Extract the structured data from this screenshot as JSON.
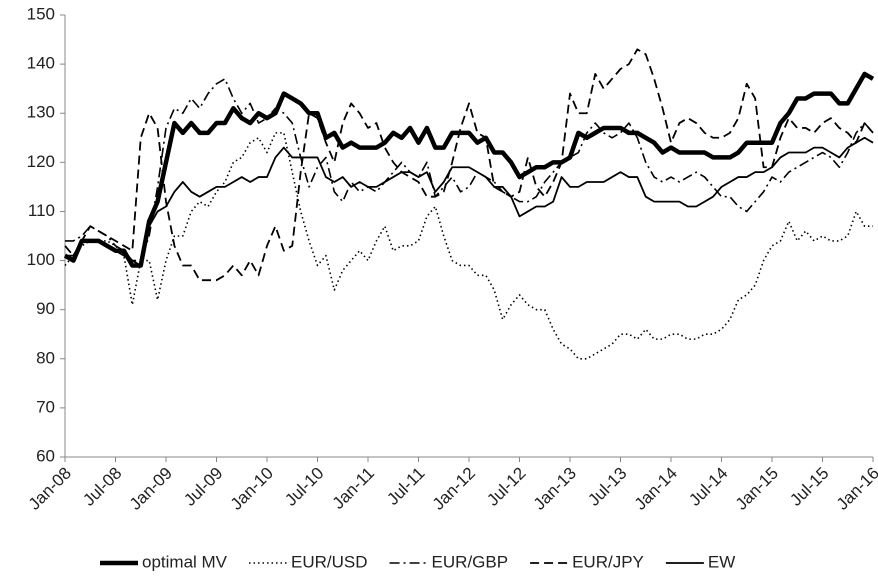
{
  "chart_data": {
    "type": "line",
    "categories": [
      "Jan-08",
      null,
      null,
      null,
      null,
      null,
      "Jul-08",
      null,
      null,
      null,
      null,
      null,
      "Jan-09",
      null,
      null,
      null,
      null,
      null,
      "Jul-09",
      null,
      null,
      null,
      null,
      null,
      "Jan-10",
      null,
      null,
      null,
      null,
      null,
      "Jul-10",
      null,
      null,
      null,
      null,
      null,
      "Jan-11",
      null,
      null,
      null,
      null,
      null,
      "Jul-11",
      null,
      null,
      null,
      null,
      null,
      "Jan-12",
      null,
      null,
      null,
      null,
      null,
      "Jul-12",
      null,
      null,
      null,
      null,
      null,
      "Jan-13",
      null,
      null,
      null,
      null,
      null,
      "Jul-13",
      null,
      null,
      null,
      null,
      null,
      "Jan-14",
      null,
      null,
      null,
      null,
      null,
      "Jul-14",
      null,
      null,
      null,
      null,
      null,
      "Jan-15",
      null,
      null,
      null,
      null,
      null,
      "Jul-15",
      null,
      null,
      null,
      null,
      null,
      "Jan-16"
    ],
    "series": [
      {
        "name": "optimal MV",
        "color": "#000000",
        "width": 4.5,
        "style": "solid",
        "values": [
          101,
          100,
          104,
          104,
          104,
          103,
          102,
          102,
          99,
          99,
          108,
          112,
          120,
          128,
          126,
          128,
          126,
          126,
          128,
          128,
          131,
          129,
          128,
          130,
          129,
          130,
          134,
          133,
          132,
          130,
          130,
          125,
          126,
          123,
          124,
          123,
          123,
          123,
          124,
          126,
          125,
          127,
          124,
          127,
          123,
          123,
          126,
          126,
          126,
          124,
          125,
          122,
          122,
          120,
          117,
          118,
          119,
          119,
          120,
          120,
          121,
          126,
          125,
          126,
          127,
          127,
          127,
          126,
          126,
          125,
          124,
          122,
          123,
          122,
          122,
          122,
          122,
          121,
          121,
          121,
          122,
          124,
          124,
          124,
          124,
          128,
          130,
          133,
          133,
          134,
          134,
          134,
          132,
          132,
          135,
          138,
          137
        ]
      },
      {
        "name": "EUR/USD",
        "color": "#000000",
        "width": 1.6,
        "style": "dotted",
        "values": [
          99,
          101,
          103,
          104,
          104,
          104,
          103,
          101,
          91,
          100,
          100,
          92,
          100,
          105,
          105,
          110,
          112,
          111,
          114,
          116,
          120,
          121,
          124,
          125,
          122,
          126,
          126,
          118,
          110,
          104,
          99,
          101,
          94,
          98,
          100,
          102,
          100,
          104,
          107,
          102,
          103,
          103,
          104,
          109,
          111,
          105,
          100,
          99,
          99,
          97,
          97,
          94,
          88,
          91,
          93,
          91,
          90,
          90,
          86,
          83,
          82,
          80,
          80,
          81,
          82,
          83,
          85,
          85,
          84,
          86,
          84,
          84,
          85,
          85,
          84,
          84,
          85,
          85,
          86,
          88,
          92,
          93,
          95,
          100,
          103,
          104,
          108,
          104,
          106,
          104,
          105,
          104,
          104,
          105,
          110,
          107,
          107
        ]
      },
      {
        "name": "EUR/GBP",
        "color": "#000000",
        "width": 1.6,
        "style": "dashdot",
        "values": [
          104,
          104,
          105,
          107,
          106,
          105,
          103,
          102,
          100,
          100,
          105,
          115,
          127,
          131,
          130,
          133,
          131,
          134,
          136,
          137,
          133,
          130,
          132,
          128,
          129,
          131,
          130,
          128,
          121,
          115,
          119,
          121,
          114,
          112,
          116,
          114,
          115,
          114,
          116,
          118,
          120,
          118,
          117,
          120,
          113,
          115,
          117,
          114,
          115,
          118,
          117,
          116,
          114,
          113,
          112,
          112,
          113,
          116,
          118,
          120,
          121,
          122,
          126,
          128,
          126,
          125,
          126,
          128,
          125,
          120,
          117,
          116,
          117,
          116,
          117,
          118,
          117,
          115,
          113,
          113,
          111,
          110,
          112,
          114,
          117,
          116,
          118,
          119,
          120,
          121,
          122,
          121,
          119,
          122,
          126,
          128,
          126
        ]
      },
      {
        "name": "EUR/JPY",
        "color": "#000000",
        "width": 1.8,
        "style": "dashed",
        "values": [
          103,
          101,
          104,
          107,
          106,
          105,
          104,
          103,
          102,
          125,
          130,
          127,
          112,
          103,
          99,
          99,
          96,
          96,
          96,
          97,
          99,
          97,
          100,
          97,
          103,
          107,
          102,
          103,
          118,
          130,
          129,
          124,
          120,
          128,
          132,
          130,
          127,
          128,
          123,
          120,
          118,
          117,
          116,
          113,
          113,
          114,
          120,
          127,
          132,
          126,
          125,
          115,
          114,
          113,
          114,
          121,
          115,
          113,
          116,
          120,
          134,
          130,
          130,
          138,
          135,
          137,
          139,
          140,
          143,
          142,
          137,
          131,
          124,
          128,
          129,
          128,
          126,
          125,
          125,
          126,
          129,
          136,
          133,
          119,
          119,
          125,
          129,
          127,
          127,
          126,
          128,
          129,
          127,
          126,
          124,
          128,
          126
        ]
      },
      {
        "name": "EW",
        "color": "#000000",
        "width": 1.8,
        "style": "solid",
        "values": [
          101,
          101,
          104,
          104,
          104,
          103,
          102,
          101,
          100,
          99,
          107,
          110,
          111,
          114,
          116,
          114,
          113,
          114,
          115,
          115,
          116,
          117,
          116,
          117,
          117,
          121,
          123,
          121,
          121,
          121,
          121,
          117,
          116,
          117,
          115,
          116,
          115,
          115,
          116,
          117,
          118,
          118,
          117,
          118,
          114,
          116,
          119,
          119,
          119,
          118,
          117,
          115,
          115,
          113,
          109,
          110,
          111,
          111,
          112,
          117,
          115,
          115,
          116,
          116,
          116,
          117,
          118,
          117,
          117,
          113,
          112,
          112,
          112,
          112,
          111,
          111,
          112,
          113,
          115,
          116,
          117,
          117,
          118,
          118,
          119,
          121,
          122,
          122,
          122,
          123,
          123,
          122,
          121,
          123,
          124,
          125,
          124
        ]
      }
    ],
    "ylim": [
      60,
      150
    ],
    "yticks": [
      60,
      70,
      80,
      90,
      100,
      110,
      120,
      130,
      140,
      150
    ],
    "grid": false,
    "legend": "bottom"
  }
}
